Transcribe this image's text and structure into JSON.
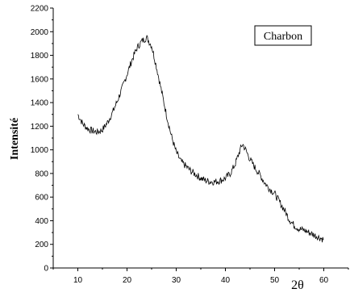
{
  "chart_data": {
    "type": "line",
    "title": "",
    "xlabel": "2θ",
    "ylabel": "Intensité",
    "xlim": [
      5,
      65
    ],
    "ylim": [
      0,
      2200
    ],
    "x_ticks": [
      10,
      20,
      30,
      40,
      50,
      60
    ],
    "y_ticks": [
      0,
      200,
      400,
      600,
      800,
      1000,
      1200,
      1400,
      1600,
      1800,
      2000,
      2200
    ],
    "grid": false,
    "legend": {
      "position": "top-right",
      "entries": [
        "Charbon"
      ]
    },
    "series": [
      {
        "name": "Charbon",
        "x": [
          10,
          11,
          12,
          13,
          14,
          15,
          16,
          17,
          18,
          19,
          20,
          21,
          22,
          23,
          24,
          25,
          26,
          27,
          28,
          29,
          30,
          31,
          32,
          33,
          34,
          35,
          36,
          37,
          38,
          39,
          40,
          41,
          42,
          43,
          43.5,
          44,
          45,
          46,
          47,
          48,
          49,
          50,
          51,
          52,
          53,
          54,
          55,
          56,
          57,
          58,
          59,
          60
        ],
        "y": [
          1300,
          1220,
          1180,
          1160,
          1150,
          1170,
          1230,
          1310,
          1410,
          1520,
          1640,
          1760,
          1860,
          1920,
          1950,
          1880,
          1700,
          1500,
          1300,
          1120,
          980,
          900,
          860,
          820,
          790,
          760,
          740,
          730,
          730,
          740,
          760,
          800,
          880,
          1000,
          1050,
          1010,
          920,
          850,
          790,
          720,
          670,
          630,
          560,
          490,
          410,
          360,
          330,
          320,
          300,
          280,
          260,
          240
        ]
      }
    ]
  }
}
